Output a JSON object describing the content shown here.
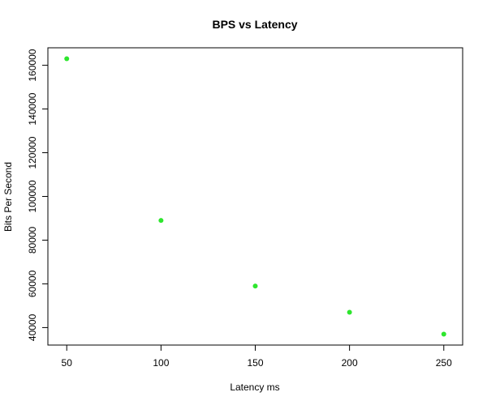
{
  "chart_data": {
    "type": "scatter",
    "title": "BPS vs Latency",
    "xlabel": "Latency ms",
    "ylabel": "Bits Per Second",
    "x": [
      50,
      100,
      150,
      200,
      250
    ],
    "y": [
      163000,
      89000,
      59000,
      47000,
      37000
    ],
    "xlim": [
      40,
      260
    ],
    "ylim": [
      32000,
      168000
    ],
    "x_ticks": [
      50,
      100,
      150,
      200,
      250
    ],
    "y_ticks": [
      40000,
      60000,
      80000,
      100000,
      120000,
      140000,
      160000
    ],
    "grid": false,
    "point_color": "#2ee62e"
  }
}
